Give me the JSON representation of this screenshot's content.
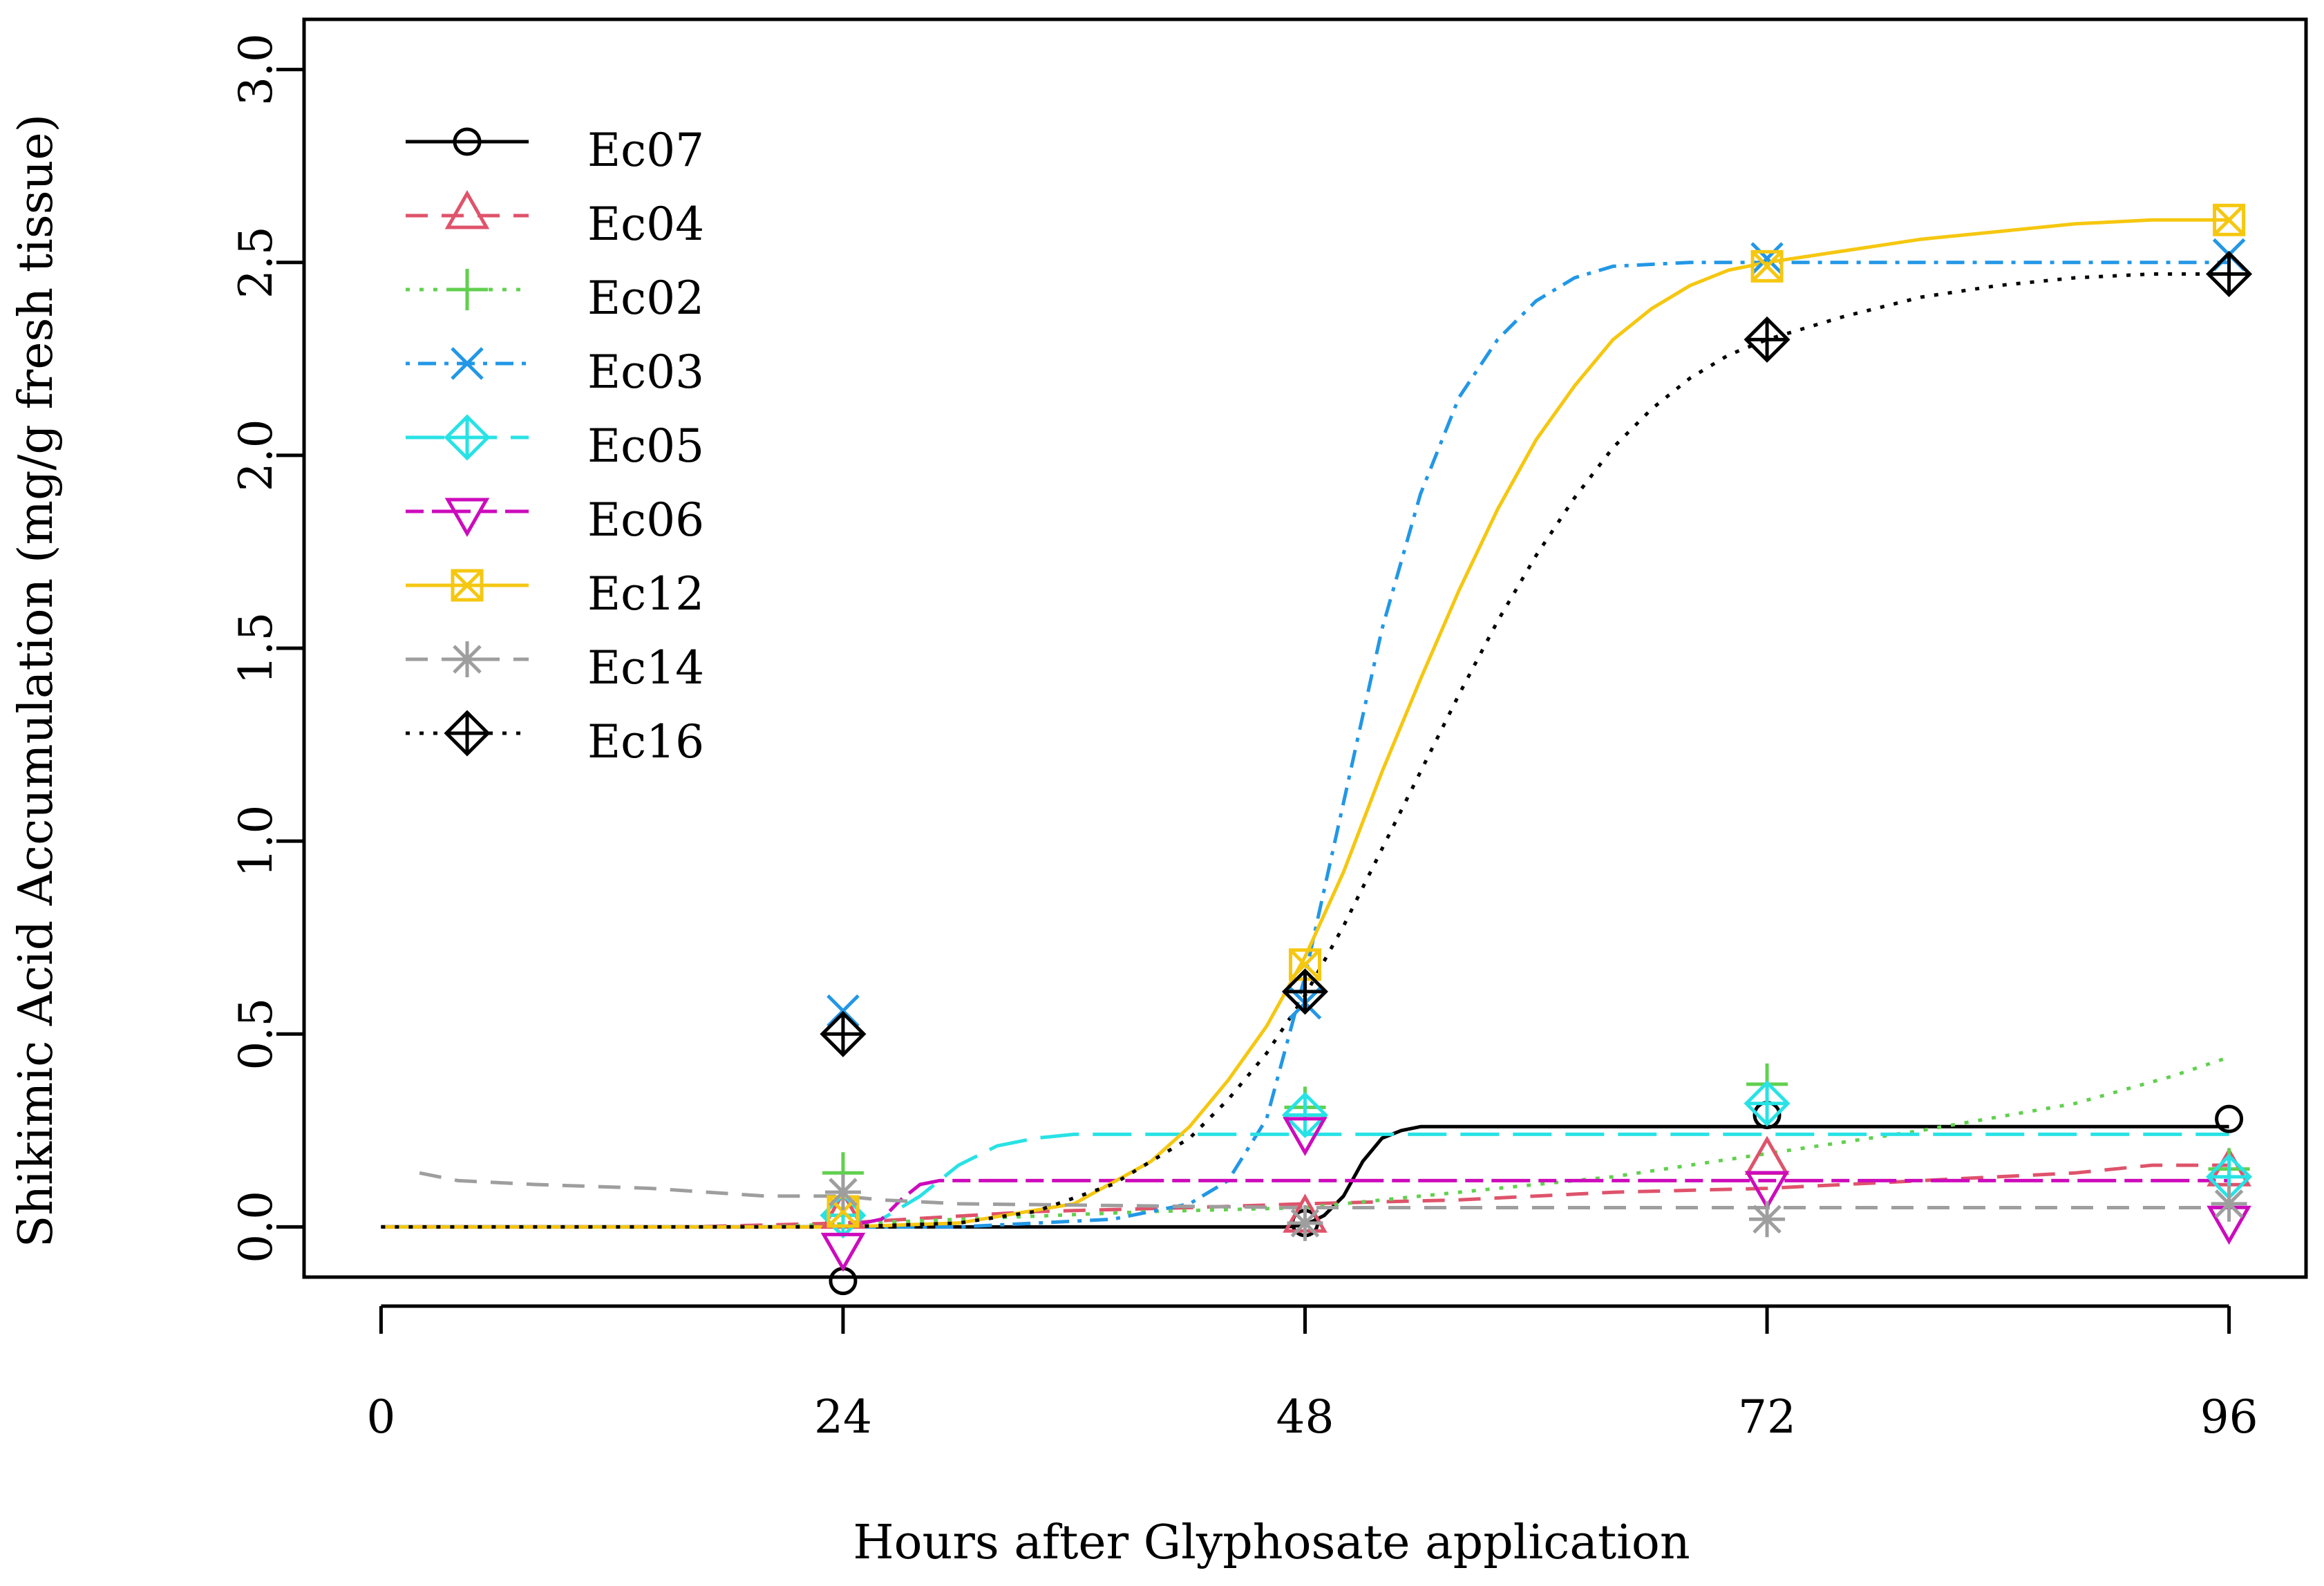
{
  "chart_data": {
    "type": "line",
    "title": "",
    "xlabel": "Hours after Glyphosate application",
    "ylabel": "Shikimic Acid Accumulation (mg/g fresh tissue)",
    "xlim": [
      -4,
      100
    ],
    "ylim": [
      -0.13,
      3.13
    ],
    "x_ticks": [
      0,
      24,
      48,
      72,
      96
    ],
    "x_tick_labels": [
      "0",
      "24",
      "48",
      "72",
      "96"
    ],
    "y_ticks": [
      0.0,
      0.5,
      1.0,
      1.5,
      2.0,
      2.5,
      3.0
    ],
    "y_tick_labels": [
      "0.0",
      "0.5",
      "1.0",
      "1.5",
      "2.0",
      "2.5",
      "3.0"
    ],
    "legend_position": "top-left",
    "x": [
      24,
      48,
      72,
      96
    ],
    "series": [
      {
        "name": "Ec07",
        "color": "#000000",
        "dash": "solid",
        "marker": "circle",
        "points": [
          -0.14,
          0.01,
          0.29,
          0.28
        ],
        "curve": [
          [
            0,
            0
          ],
          [
            24,
            0
          ],
          [
            30,
            0
          ],
          [
            40,
            0
          ],
          [
            47,
            0
          ],
          [
            48,
            0.005
          ],
          [
            49,
            0.03
          ],
          [
            50,
            0.08
          ],
          [
            51,
            0.17
          ],
          [
            52,
            0.23
          ],
          [
            53,
            0.25
          ],
          [
            54,
            0.26
          ],
          [
            55,
            0.26
          ],
          [
            60,
            0.26
          ],
          [
            72,
            0.26
          ],
          [
            96,
            0.26
          ]
        ]
      },
      {
        "name": "Ec04",
        "color": "#DF536B",
        "dash": "dash",
        "marker": "triangle-up",
        "points": [
          0.03,
          0.02,
          0.17,
          0.14
        ],
        "curve": [
          [
            0,
            0
          ],
          [
            16,
            0
          ],
          [
            24,
            0.01
          ],
          [
            34,
            0.04
          ],
          [
            42,
            0.05
          ],
          [
            48,
            0.06
          ],
          [
            56,
            0.07
          ],
          [
            64,
            0.09
          ],
          [
            72,
            0.1
          ],
          [
            80,
            0.12
          ],
          [
            88,
            0.14
          ],
          [
            92,
            0.16
          ],
          [
            96,
            0.16
          ]
        ]
      },
      {
        "name": "Ec02",
        "color": "#61D04F",
        "dash": "dot",
        "marker": "plus",
        "points": [
          0.14,
          0.31,
          0.37,
          0.15
        ],
        "curve": [
          [
            0,
            0
          ],
          [
            20,
            0
          ],
          [
            30,
            0.02
          ],
          [
            40,
            0.04
          ],
          [
            48,
            0.05
          ],
          [
            56,
            0.09
          ],
          [
            64,
            0.13
          ],
          [
            72,
            0.19
          ],
          [
            80,
            0.25
          ],
          [
            88,
            0.32
          ],
          [
            93,
            0.39
          ],
          [
            96,
            0.44
          ]
        ]
      },
      {
        "name": "Ec03",
        "color": "#2297E6",
        "dash": "dotdash",
        "marker": "cross",
        "points": [
          0.56,
          0.58,
          2.51,
          2.52
        ],
        "curve": [
          [
            0,
            0
          ],
          [
            30,
            0
          ],
          [
            38,
            0.02
          ],
          [
            42,
            0.06
          ],
          [
            44,
            0.12
          ],
          [
            46,
            0.28
          ],
          [
            48,
            0.65
          ],
          [
            50,
            1.1
          ],
          [
            52,
            1.55
          ],
          [
            54,
            1.9
          ],
          [
            56,
            2.15
          ],
          [
            58,
            2.3
          ],
          [
            60,
            2.4
          ],
          [
            62,
            2.46
          ],
          [
            64,
            2.49
          ],
          [
            68,
            2.5
          ],
          [
            72,
            2.5
          ],
          [
            96,
            2.5
          ]
        ]
      },
      {
        "name": "Ec05",
        "color": "#28E2E5",
        "dash": "longdash",
        "marker": "diamond-plus",
        "points": [
          0.03,
          0.29,
          0.32,
          0.13
        ],
        "curve": [
          [
            0,
            0
          ],
          [
            24,
            0
          ],
          [
            26,
            0.02
          ],
          [
            28,
            0.08
          ],
          [
            30,
            0.16
          ],
          [
            32,
            0.21
          ],
          [
            34,
            0.23
          ],
          [
            36,
            0.24
          ],
          [
            48,
            0.24
          ],
          [
            72,
            0.24
          ],
          [
            96,
            0.24
          ]
        ]
      },
      {
        "name": "Ec06",
        "color": "#CD0BBC",
        "dash": "twodash",
        "marker": "triangle-down",
        "points": [
          -0.05,
          0.25,
          0.11,
          0.02
        ],
        "curve": [
          [
            0,
            0
          ],
          [
            24,
            0
          ],
          [
            26,
            0.02
          ],
          [
            27,
            0.07
          ],
          [
            28,
            0.11
          ],
          [
            29,
            0.12
          ],
          [
            30,
            0.12
          ],
          [
            48,
            0.12
          ],
          [
            72,
            0.12
          ],
          [
            96,
            0.12
          ]
        ]
      },
      {
        "name": "Ec12",
        "color": "#F5C710",
        "dash": "solid",
        "marker": "square-x",
        "points": [
          0.04,
          0.68,
          2.49,
          2.61
        ],
        "curve": [
          [
            0,
            0
          ],
          [
            24,
            0
          ],
          [
            30,
            0.01
          ],
          [
            36,
            0.06
          ],
          [
            40,
            0.17
          ],
          [
            42,
            0.26
          ],
          [
            44,
            0.38
          ],
          [
            46,
            0.52
          ],
          [
            48,
            0.7
          ],
          [
            50,
            0.92
          ],
          [
            52,
            1.18
          ],
          [
            54,
            1.42
          ],
          [
            56,
            1.65
          ],
          [
            58,
            1.86
          ],
          [
            60,
            2.04
          ],
          [
            62,
            2.18
          ],
          [
            64,
            2.3
          ],
          [
            66,
            2.38
          ],
          [
            68,
            2.44
          ],
          [
            70,
            2.48
          ],
          [
            72,
            2.5
          ],
          [
            76,
            2.53
          ],
          [
            80,
            2.56
          ],
          [
            84,
            2.58
          ],
          [
            88,
            2.6
          ],
          [
            92,
            2.61
          ],
          [
            96,
            2.61
          ]
        ]
      },
      {
        "name": "Ec14",
        "color": "#9E9E9E",
        "dash": "dash",
        "marker": "asterisk",
        "points": [
          0.09,
          0.01,
          0.02,
          0.06
        ],
        "curve": [
          [
            2,
            0.14
          ],
          [
            4,
            0.12
          ],
          [
            8,
            0.11
          ],
          [
            14,
            0.1
          ],
          [
            20,
            0.08
          ],
          [
            24,
            0.08
          ],
          [
            26,
            0.07
          ],
          [
            30,
            0.06
          ],
          [
            48,
            0.05
          ],
          [
            60,
            0.05
          ],
          [
            72,
            0.05
          ],
          [
            96,
            0.05
          ]
        ]
      },
      {
        "name": "Ec16",
        "color": "#000000",
        "dash": "dot",
        "marker": "diamond-plus",
        "points": [
          0.5,
          0.61,
          2.3,
          2.47
        ],
        "curve": [
          [
            0,
            0
          ],
          [
            24,
            0
          ],
          [
            30,
            0.01
          ],
          [
            34,
            0.04
          ],
          [
            38,
            0.11
          ],
          [
            42,
            0.23
          ],
          [
            44,
            0.33
          ],
          [
            46,
            0.45
          ],
          [
            48,
            0.6
          ],
          [
            50,
            0.78
          ],
          [
            52,
            0.98
          ],
          [
            54,
            1.18
          ],
          [
            56,
            1.38
          ],
          [
            58,
            1.57
          ],
          [
            60,
            1.74
          ],
          [
            62,
            1.89
          ],
          [
            64,
            2.02
          ],
          [
            66,
            2.12
          ],
          [
            68,
            2.2
          ],
          [
            70,
            2.26
          ],
          [
            72,
            2.3
          ],
          [
            76,
            2.36
          ],
          [
            80,
            2.41
          ],
          [
            84,
            2.44
          ],
          [
            88,
            2.46
          ],
          [
            92,
            2.47
          ],
          [
            96,
            2.47
          ]
        ]
      }
    ]
  }
}
